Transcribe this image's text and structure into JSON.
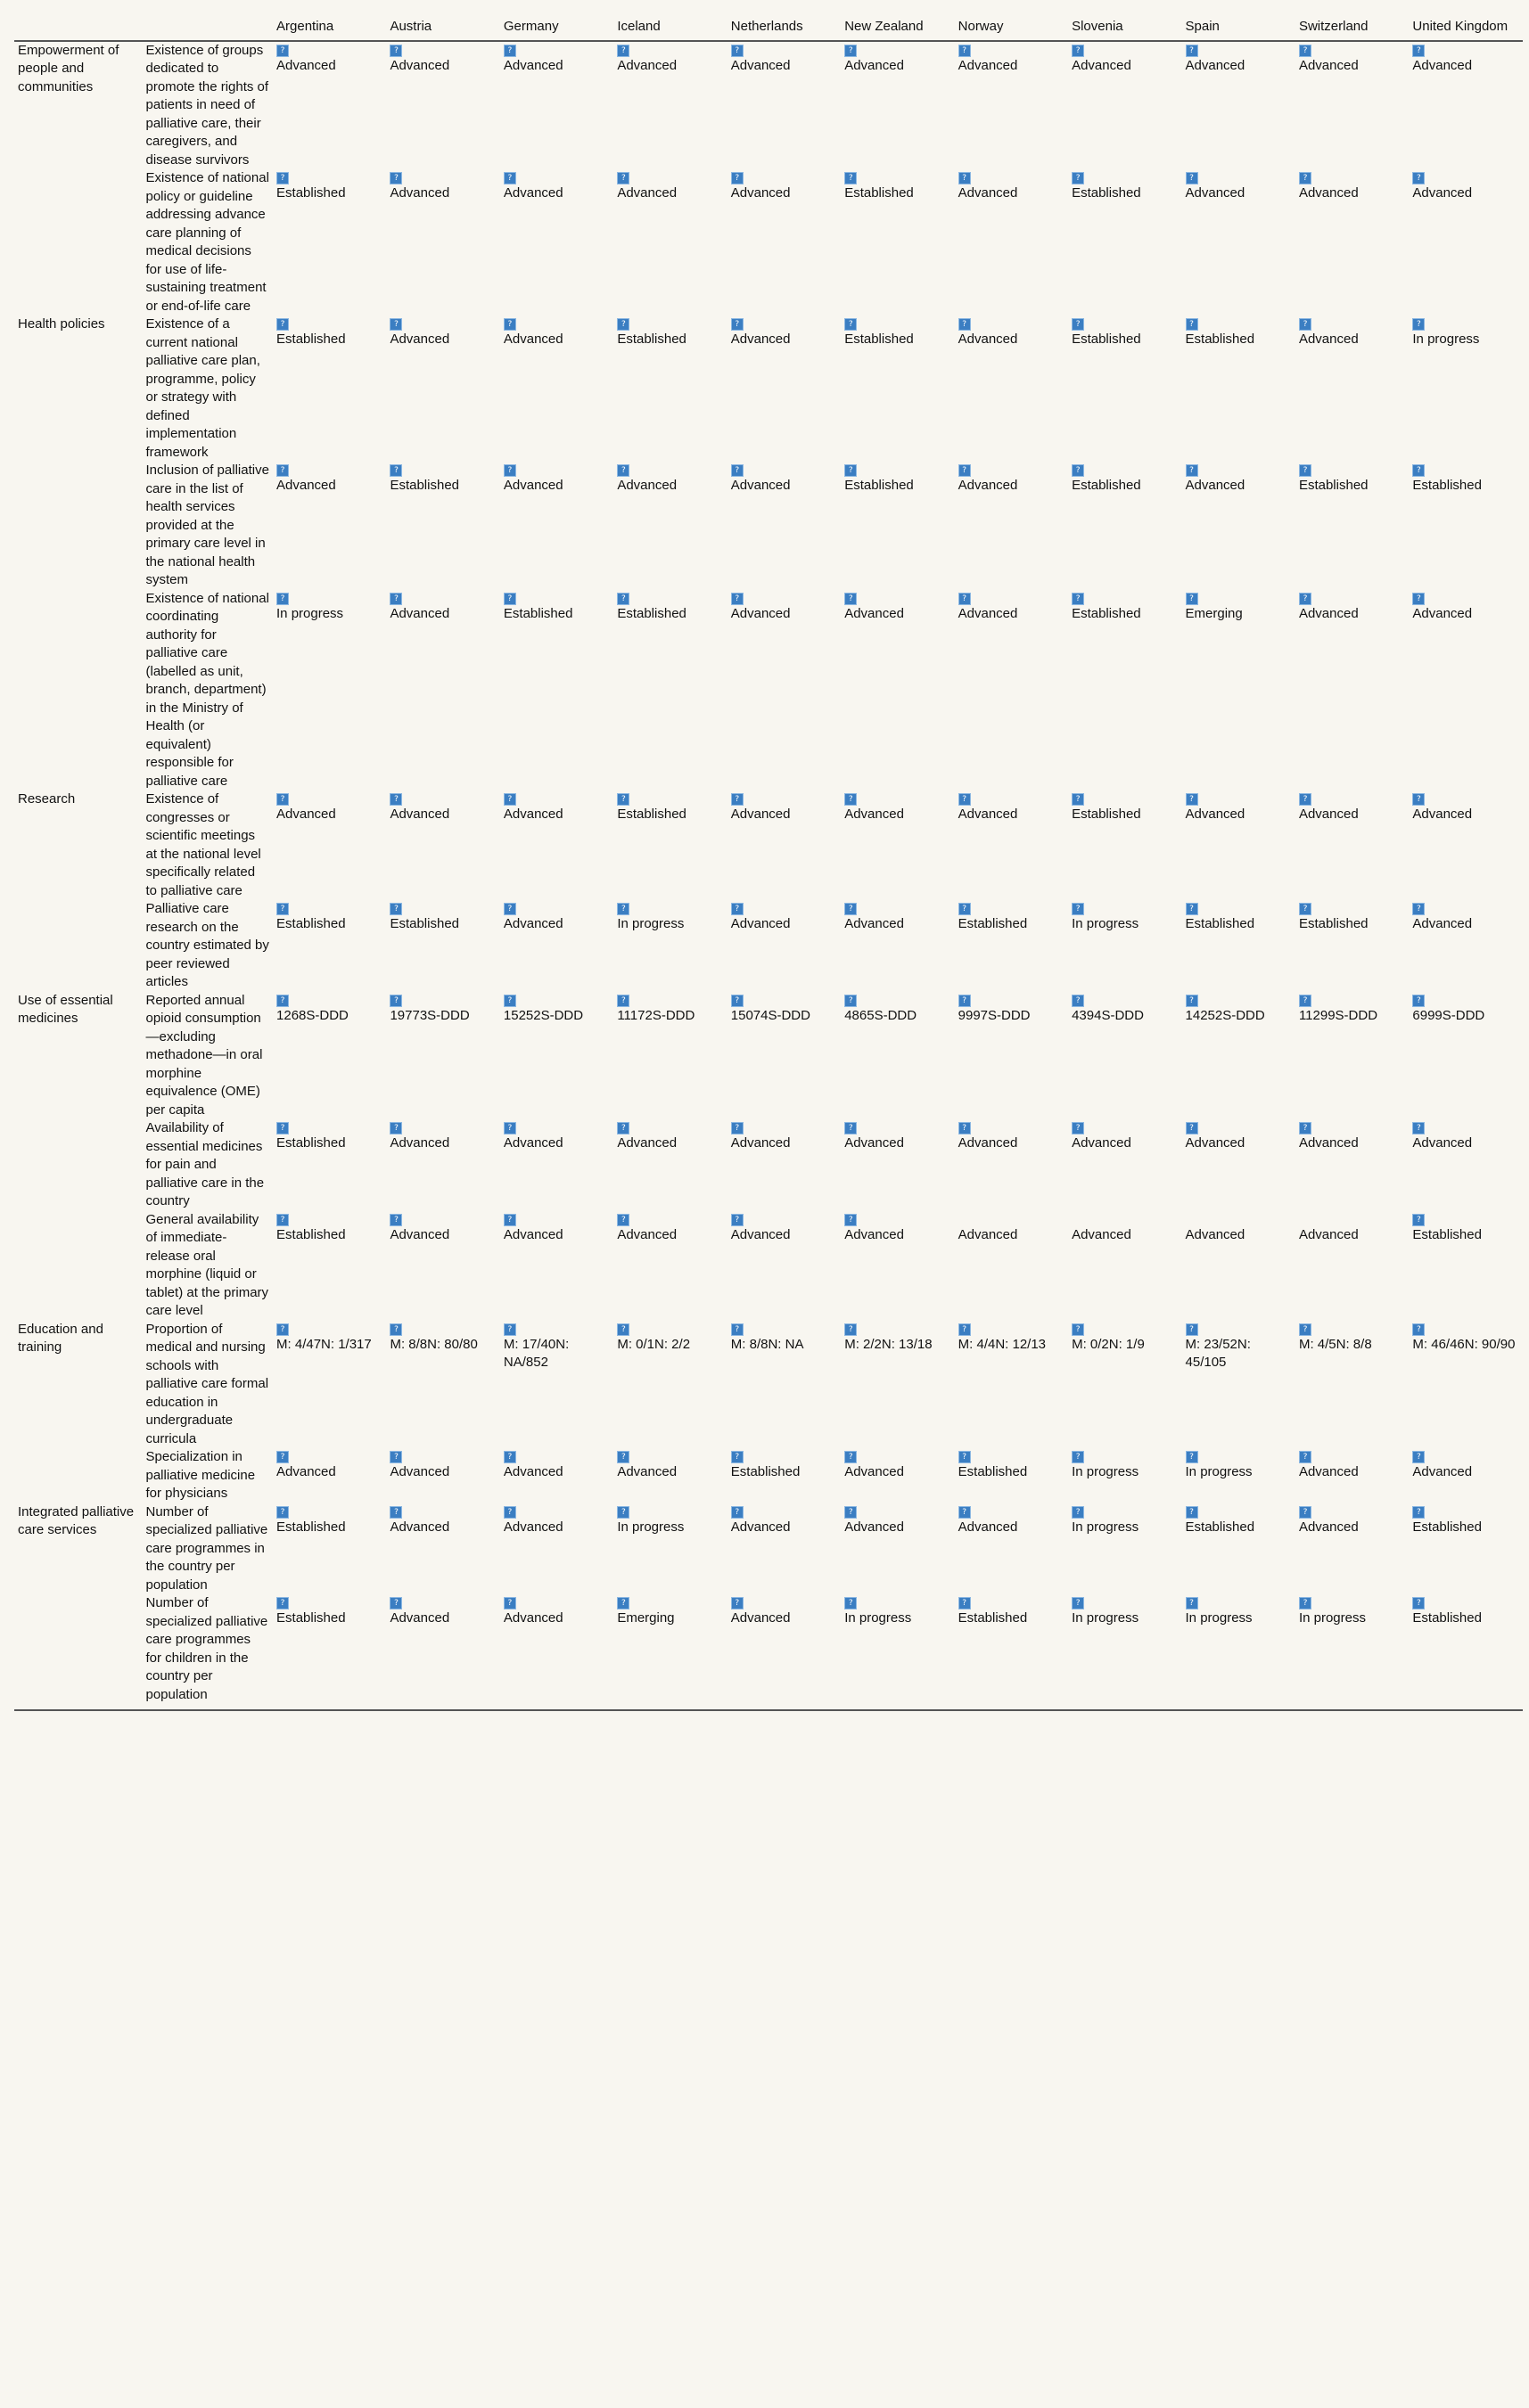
{
  "columns": [
    "",
    "",
    "Argentina",
    "Austria",
    "Germany",
    "Iceland",
    "Netherlands",
    "New Zealand",
    "Norway",
    "Slovenia",
    "Spain",
    "Switzerland",
    "United Kingdom"
  ],
  "rows": [
    {
      "dimension": "Empowerment of people and communities",
      "indicator": "Existence of groups dedicated to promote the rights of patients in need of palliative care, their caregivers, and disease survivors",
      "flags": [
        true,
        true,
        true,
        true,
        true,
        true,
        true,
        true,
        true,
        true,
        true
      ],
      "values": [
        "Advanced",
        "Advanced",
        "Advanced",
        "Advanced",
        "Advanced",
        "Advanced",
        "Advanced",
        "Advanced",
        "Advanced",
        "Advanced",
        "Advanced"
      ]
    },
    {
      "dimension": "",
      "indicator": "Existence of national policy or guideline addressing advance care planning of medical decisions for use of life-sustaining treatment or end-of-life care",
      "flags": [
        true,
        true,
        true,
        true,
        true,
        true,
        true,
        true,
        true,
        true,
        true
      ],
      "values": [
        "Established",
        "Advanced",
        "Advanced",
        "Advanced",
        "Advanced",
        "Established",
        "Advanced",
        "Established",
        "Advanced",
        "Advanced",
        "Advanced"
      ]
    },
    {
      "dimension": "Health policies",
      "indicator": "Existence of a current national palliative care plan, programme, policy or strategy with defined implementation framework",
      "flags": [
        true,
        true,
        true,
        true,
        true,
        true,
        true,
        true,
        true,
        true,
        true
      ],
      "values": [
        "Established",
        "Advanced",
        "Advanced",
        "Established",
        "Advanced",
        "Established",
        "Advanced",
        "Established",
        "Established",
        "Advanced",
        "In progress"
      ]
    },
    {
      "dimension": "",
      "indicator": "Inclusion of palliative care in the list of health services provided at the primary care level in the national health system",
      "flags": [
        true,
        true,
        true,
        true,
        true,
        true,
        true,
        true,
        true,
        true,
        true
      ],
      "values": [
        "Advanced",
        "Established",
        "Advanced",
        "Advanced",
        "Advanced",
        "Established",
        "Advanced",
        "Established",
        "Advanced",
        "Established",
        "Established"
      ]
    },
    {
      "dimension": "",
      "indicator": "Existence of national coordinating authority for palliative care (labelled as unit, branch, department) in the Ministry of Health (or equivalent) responsible for palliative care",
      "flags": [
        true,
        true,
        true,
        true,
        true,
        true,
        true,
        true,
        true,
        true,
        true
      ],
      "values": [
        "In progress",
        "Advanced",
        "Established",
        "Established",
        "Advanced",
        "Advanced",
        "Advanced",
        "Established",
        "Emerging",
        "Advanced",
        "Advanced"
      ]
    },
    {
      "dimension": "Research",
      "indicator": "Existence of congresses or scientific meetings at the national level specifically related to palliative care",
      "flags": [
        true,
        true,
        true,
        true,
        true,
        true,
        true,
        true,
        true,
        true,
        true
      ],
      "values": [
        "Advanced",
        "Advanced",
        "Advanced",
        "Established",
        "Advanced",
        "Advanced",
        "Advanced",
        "Established",
        "Advanced",
        "Advanced",
        "Advanced"
      ]
    },
    {
      "dimension": "",
      "indicator": "Palliative care research on the country estimated by peer reviewed articles",
      "flags": [
        true,
        true,
        true,
        true,
        true,
        true,
        true,
        true,
        true,
        true,
        true
      ],
      "values": [
        "Established",
        "Established",
        "Advanced",
        "In progress",
        "Advanced",
        "Advanced",
        "Established",
        "In progress",
        "Established",
        "Established",
        "Advanced"
      ]
    },
    {
      "dimension": "Use of essential medicines",
      "indicator": "Reported annual opioid consumption—excluding methadone—in oral morphine equivalence (OME) per capita",
      "flags": [
        true,
        true,
        true,
        true,
        true,
        true,
        true,
        true,
        true,
        true,
        true
      ],
      "values": [
        "1268S-DDD",
        "19773S-DDD",
        "15252S-DDD",
        "11172S-DDD",
        "15074S-DDD",
        "4865S-DDD",
        "9997S-DDD",
        "4394S-DDD",
        "14252S-DDD",
        "11299S-DDD",
        "6999S-DDD"
      ]
    },
    {
      "dimension": "",
      "indicator": "Availability of essential medicines for pain and palliative care in the country",
      "flags": [
        true,
        true,
        true,
        true,
        true,
        true,
        true,
        true,
        true,
        true,
        true
      ],
      "values": [
        "Established",
        "Advanced",
        "Advanced",
        "Advanced",
        "Advanced",
        "Advanced",
        "Advanced",
        "Advanced",
        "Advanced",
        "Advanced",
        "Advanced"
      ]
    },
    {
      "dimension": "",
      "indicator": "General availability of immediate-release oral morphine (liquid or tablet) at the primary care level",
      "flags": [
        true,
        true,
        true,
        true,
        true,
        true,
        false,
        false,
        false,
        false,
        true
      ],
      "values": [
        "Established",
        "Advanced",
        "Advanced",
        "Advanced",
        "Advanced",
        "Advanced",
        "Advanced",
        "Advanced",
        "Advanced",
        "Advanced",
        "Established"
      ]
    },
    {
      "dimension": "Education and training",
      "indicator": "Proportion of medical and nursing schools with palliative care formal education in undergraduate curricula",
      "flags": [
        true,
        true,
        true,
        true,
        true,
        true,
        true,
        true,
        true,
        true,
        true
      ],
      "values": [
        "M: 4/47N: 1/317",
        "M: 8/8N: 80/80",
        "M: 17/40N: NA/852",
        "M: 0/1N: 2/2",
        "M: 8/8N: NA",
        "M: 2/2N: 13/18",
        "M: 4/4N: 12/13",
        "M: 0/2N: 1/9",
        "M: 23/52N: 45/105",
        "M: 4/5N: 8/8",
        "M: 46/46N: 90/90"
      ]
    },
    {
      "dimension": "",
      "indicator": "Specialization in palliative medicine for physicians",
      "flags": [
        true,
        true,
        true,
        true,
        true,
        true,
        true,
        true,
        true,
        true,
        true
      ],
      "values": [
        "Advanced",
        "Advanced",
        "Advanced",
        "Advanced",
        "Established",
        "Advanced",
        "Established",
        "In progress",
        "In progress",
        "Advanced",
        "Advanced"
      ]
    },
    {
      "dimension": "Integrated palliative care services",
      "indicator": "Number of specialized palliative care programmes in the country per population",
      "flags": [
        true,
        true,
        true,
        true,
        true,
        true,
        true,
        true,
        true,
        true,
        true
      ],
      "values": [
        "Established",
        "Advanced",
        "Advanced",
        "In progress",
        "Advanced",
        "Advanced",
        "Advanced",
        "In progress",
        "Established",
        "Advanced",
        "Established"
      ]
    },
    {
      "dimension": "",
      "indicator": "Number of specialized palliative care programmes for children in the country per population",
      "flags": [
        true,
        true,
        true,
        true,
        true,
        true,
        true,
        true,
        true,
        true,
        true
      ],
      "values": [
        "Established",
        "Advanced",
        "Advanced",
        "Emerging",
        "Advanced",
        "In progress",
        "Established",
        "In progress",
        "In progress",
        "In progress",
        "Established"
      ]
    }
  ]
}
